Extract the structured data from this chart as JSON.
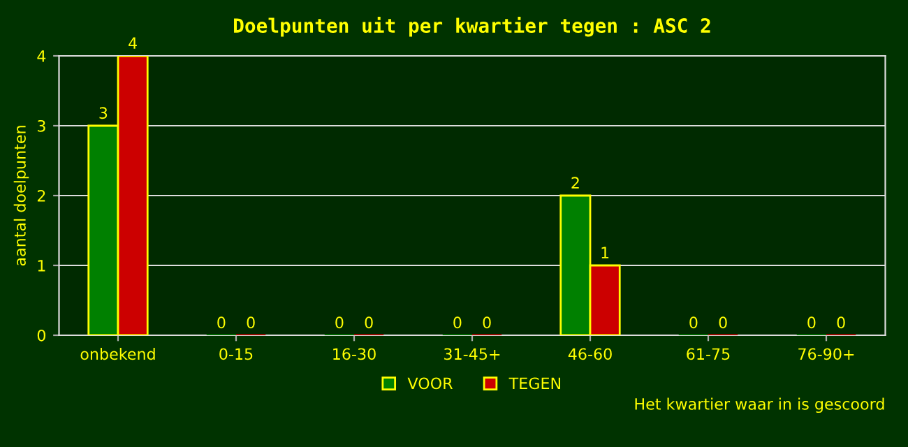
{
  "chart_data": {
    "type": "bar",
    "title": "Doelpunten uit per kwartier tegen : ASC 2",
    "xlabel": "Het kwartier waar in is gescoord",
    "ylabel": "aantal doelpunten",
    "categories": [
      "onbekend",
      "0-15",
      "16-30",
      "31-45+",
      "46-60",
      "61-75",
      "76-90+"
    ],
    "series": [
      {
        "name": "VOOR",
        "color": "#008000",
        "values": [
          3,
          0,
          0,
          0,
          2,
          0,
          0
        ]
      },
      {
        "name": "TEGEN",
        "color": "#cc0000",
        "values": [
          4,
          0,
          0,
          0,
          1,
          0,
          0
        ]
      }
    ],
    "ylim": [
      0,
      4
    ],
    "yticks": [
      0,
      1,
      2,
      3,
      4
    ],
    "grid": "y",
    "legend": "bottom",
    "data_labels": true
  }
}
